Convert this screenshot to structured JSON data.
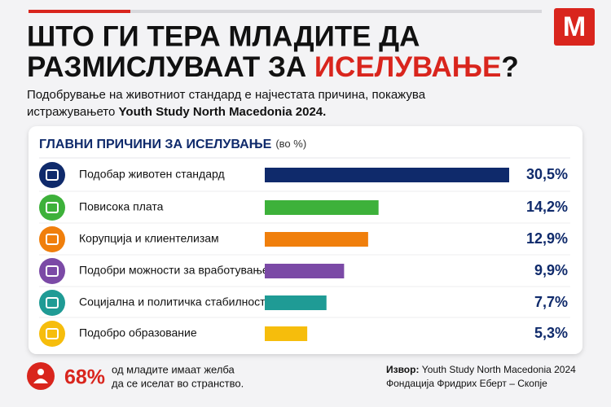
{
  "logo": "M",
  "header": {
    "title_line1": "ШТО ГИ ТЕРА МЛАДИТЕ ДА",
    "title_line2": "РАЗМИСЛУВААТ ЗА ",
    "title_highlight": "ИСЕЛУВАЊЕ",
    "title_end": "?",
    "subtitle_line1": "Подобрување на животниот стандард е најчестата причина, покажува",
    "subtitle_line2": "истражувањето ",
    "subtitle_bold": "Youth Study North Macedonia 2024."
  },
  "chart_data": {
    "type": "bar",
    "orientation": "horizontal",
    "title": "ГЛАВНИ ПРИЧИНИ ЗА ИСЕЛУВАЊЕ",
    "unit": "(во %)",
    "categories": [
      "Подобар животен стандард",
      "Повисока плата",
      "Корупција и клиентелизам",
      "Подобри можности за вработување",
      "Социјална и политичка стабилност",
      "Подобро образование"
    ],
    "values": [
      30.5,
      14.2,
      12.9,
      9.9,
      7.7,
      5.3
    ],
    "value_labels": [
      "30,5%",
      "14,2%",
      "12,9%",
      "9,9%",
      "7,7%",
      "5,3%"
    ],
    "colors": [
      "#0f2a6b",
      "#3db13a",
      "#f07f0c",
      "#7b4aa6",
      "#1f9b95",
      "#f6bd0c"
    ]
  },
  "footer": {
    "stat": "68%",
    "stat_text_line1": "од младите имаат желба",
    "stat_text_line2": "да се иселат во странство.",
    "source_label": "Извор:",
    "source": " Youth Study North Macedonia 2024",
    "source_line2": "Фондација Фридрих Еберт – Скопје"
  }
}
